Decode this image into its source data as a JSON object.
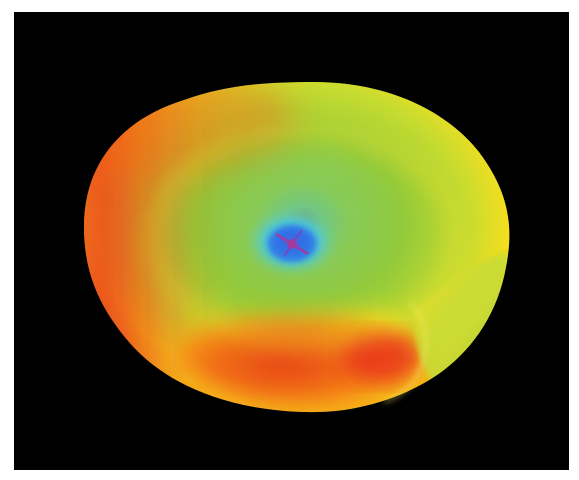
{
  "image": {
    "subject": "heatmap-surface",
    "background_color": "#000000",
    "frame_color": "#ffffff",
    "palette": {
      "red": "#e8281a",
      "orange": "#f26a16",
      "yellow": "#f5de1e",
      "green": "#96cc3a",
      "cyan": "#4cc8d8",
      "blue": "#2e6fe8",
      "magenta": "#a63aa0"
    }
  }
}
